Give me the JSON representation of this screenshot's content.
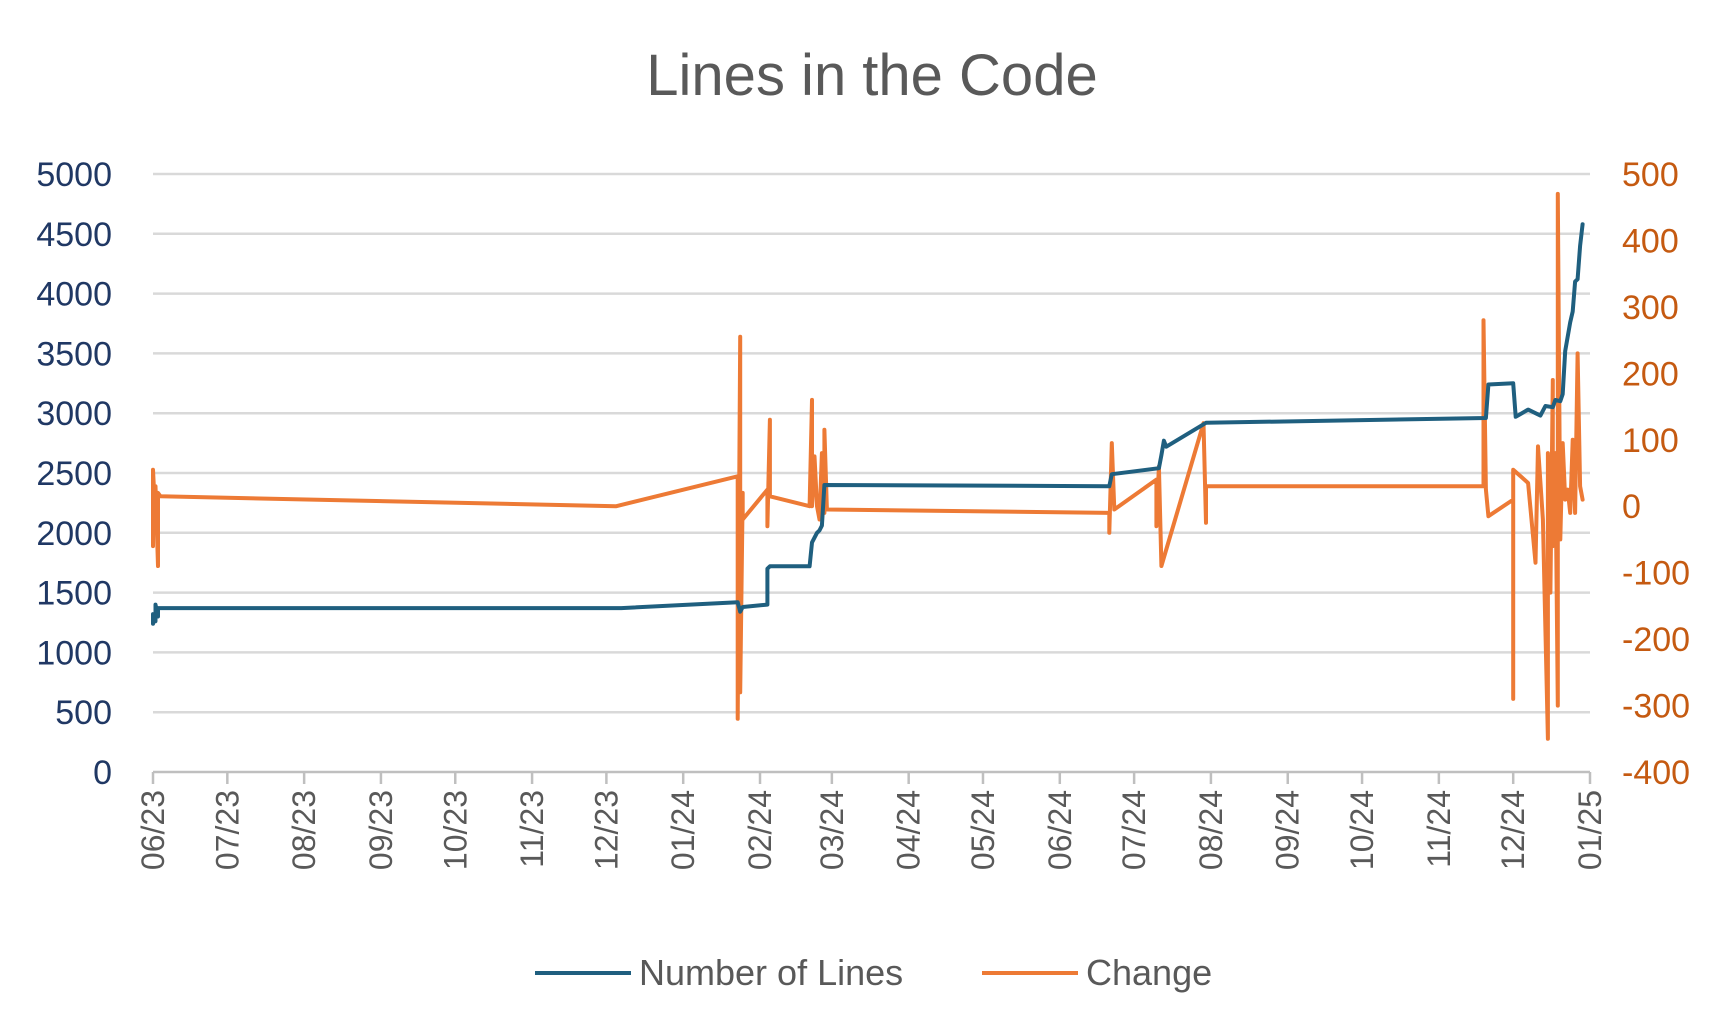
{
  "chart_data": {
    "type": "line",
    "title": "Lines in the Code",
    "xlabel": "",
    "ylabel_left": "",
    "ylabel_right": "",
    "x_axis": "date",
    "xlim": [
      "2023-06-01",
      "2025-01-01"
    ],
    "ylim_left": [
      0,
      5000
    ],
    "ylim_right": [
      -400,
      500
    ],
    "gridlines": true,
    "legend_position": "bottom",
    "x_tick_labels": [
      "06/23",
      "07/23",
      "08/23",
      "09/23",
      "10/23",
      "11/23",
      "12/23",
      "01/24",
      "02/24",
      "03/24",
      "04/24",
      "05/24",
      "06/24",
      "07/24",
      "08/24",
      "09/24",
      "10/24",
      "11/24",
      "12/24",
      "01/25"
    ],
    "y_tick_labels_left": [
      "0",
      "500",
      "1000",
      "1500",
      "2000",
      "2500",
      "3000",
      "3500",
      "4000",
      "4500",
      "5000"
    ],
    "y_tick_labels_right": [
      "-400",
      "-300",
      "-200",
      "-100",
      "0",
      "100",
      "200",
      "300",
      "400",
      "500"
    ],
    "colors": {
      "lines": "#1f5f7f",
      "change": "#ed7a35",
      "left_axis_text": "#203864",
      "right_axis_text": "#c55a11"
    },
    "series": [
      {
        "name": "Number of Lines",
        "axis": "left",
        "points": [
          [
            "2023-06-01",
            1240
          ],
          [
            "2023-06-01",
            1320
          ],
          [
            "2023-06-02",
            1260
          ],
          [
            "2023-06-02",
            1400
          ],
          [
            "2023-06-03",
            1300
          ],
          [
            "2023-06-03",
            1370
          ],
          [
            "2023-12-07",
            1370
          ],
          [
            "2024-01-23",
            1420
          ],
          [
            "2024-01-24",
            1340
          ],
          [
            "2024-01-25",
            1380
          ],
          [
            "2024-02-04",
            1400
          ],
          [
            "2024-02-04",
            1700
          ],
          [
            "2024-02-05",
            1720
          ],
          [
            "2024-02-21",
            1720
          ],
          [
            "2024-02-22",
            1920
          ],
          [
            "2024-02-24",
            2000
          ],
          [
            "2024-02-25",
            2020
          ],
          [
            "2024-02-26",
            2060
          ],
          [
            "2024-02-27",
            2400
          ],
          [
            "2024-06-21",
            2390
          ],
          [
            "2024-06-22",
            2490
          ],
          [
            "2024-07-11",
            2540
          ],
          [
            "2024-07-12",
            2650
          ],
          [
            "2024-07-13",
            2770
          ],
          [
            "2024-07-14",
            2720
          ],
          [
            "2024-07-30",
            2920
          ],
          [
            "2024-11-20",
            2960
          ],
          [
            "2024-11-21",
            3240
          ],
          [
            "2024-12-01",
            3250
          ],
          [
            "2024-12-02",
            2970
          ],
          [
            "2024-12-07",
            3030
          ],
          [
            "2024-12-12",
            2980
          ],
          [
            "2024-12-14",
            3060
          ],
          [
            "2024-12-17",
            3050
          ],
          [
            "2024-12-18",
            3110
          ],
          [
            "2024-12-20",
            3100
          ],
          [
            "2024-12-21",
            3160
          ],
          [
            "2024-12-22",
            3520
          ],
          [
            "2024-12-24",
            3760
          ],
          [
            "2024-12-25",
            3850
          ],
          [
            "2024-12-26",
            4100
          ],
          [
            "2024-12-27",
            4120
          ],
          [
            "2024-12-28",
            4400
          ],
          [
            "2024-12-29",
            4580
          ]
        ]
      },
      {
        "name": "Change",
        "axis": "right",
        "points": [
          [
            "2023-06-01",
            -60
          ],
          [
            "2023-06-01",
            55
          ],
          [
            "2023-06-02",
            -20
          ],
          [
            "2023-06-02",
            30
          ],
          [
            "2023-06-03",
            -90
          ],
          [
            "2023-06-03",
            20
          ],
          [
            "2023-06-04",
            15
          ],
          [
            "2023-12-05",
            0
          ],
          [
            "2023-12-07",
            2
          ],
          [
            "2024-01-23",
            45
          ],
          [
            "2024-01-23",
            -320
          ],
          [
            "2024-01-24",
            255
          ],
          [
            "2024-01-24",
            -280
          ],
          [
            "2024-01-25",
            20
          ],
          [
            "2024-01-25",
            -20
          ],
          [
            "2024-02-04",
            25
          ],
          [
            "2024-02-04",
            -30
          ],
          [
            "2024-02-05",
            130
          ],
          [
            "2024-02-05",
            15
          ],
          [
            "2024-02-21",
            0
          ],
          [
            "2024-02-22",
            160
          ],
          [
            "2024-02-22",
            0
          ],
          [
            "2024-02-23",
            75
          ],
          [
            "2024-02-24",
            0
          ],
          [
            "2024-02-25",
            -20
          ],
          [
            "2024-02-26",
            80
          ],
          [
            "2024-02-27",
            -10
          ],
          [
            "2024-02-27",
            115
          ],
          [
            "2024-02-28",
            -5
          ],
          [
            "2024-06-21",
            -10
          ],
          [
            "2024-06-21",
            -40
          ],
          [
            "2024-06-22",
            95
          ],
          [
            "2024-06-23",
            -5
          ],
          [
            "2024-07-10",
            40
          ],
          [
            "2024-07-10",
            -30
          ],
          [
            "2024-07-11",
            60
          ],
          [
            "2024-07-12",
            -90
          ],
          [
            "2024-07-29",
            125
          ],
          [
            "2024-07-30",
            -25
          ],
          [
            "2024-07-30",
            30
          ],
          [
            "2024-11-19",
            30
          ],
          [
            "2024-11-19",
            280
          ],
          [
            "2024-11-20",
            25
          ],
          [
            "2024-11-21",
            -15
          ],
          [
            "2024-12-01",
            10
          ],
          [
            "2024-12-01",
            -290
          ],
          [
            "2024-12-01",
            55
          ],
          [
            "2024-12-04",
            45
          ],
          [
            "2024-12-07",
            35
          ],
          [
            "2024-12-10",
            -85
          ],
          [
            "2024-12-11",
            90
          ],
          [
            "2024-12-13",
            -20
          ],
          [
            "2024-12-15",
            -350
          ],
          [
            "2024-12-15",
            80
          ],
          [
            "2024-12-16",
            -130
          ],
          [
            "2024-12-17",
            190
          ],
          [
            "2024-12-17",
            -60
          ],
          [
            "2024-12-18",
            80
          ],
          [
            "2024-12-19",
            -300
          ],
          [
            "2024-12-19",
            470
          ],
          [
            "2024-12-20",
            -50
          ],
          [
            "2024-12-21",
            95
          ],
          [
            "2024-12-22",
            10
          ],
          [
            "2024-12-23",
            25
          ],
          [
            "2024-12-24",
            -10
          ],
          [
            "2024-12-25",
            100
          ],
          [
            "2024-12-26",
            -10
          ],
          [
            "2024-12-27",
            230
          ],
          [
            "2024-12-28",
            30
          ],
          [
            "2024-12-29",
            10
          ]
        ]
      }
    ]
  }
}
